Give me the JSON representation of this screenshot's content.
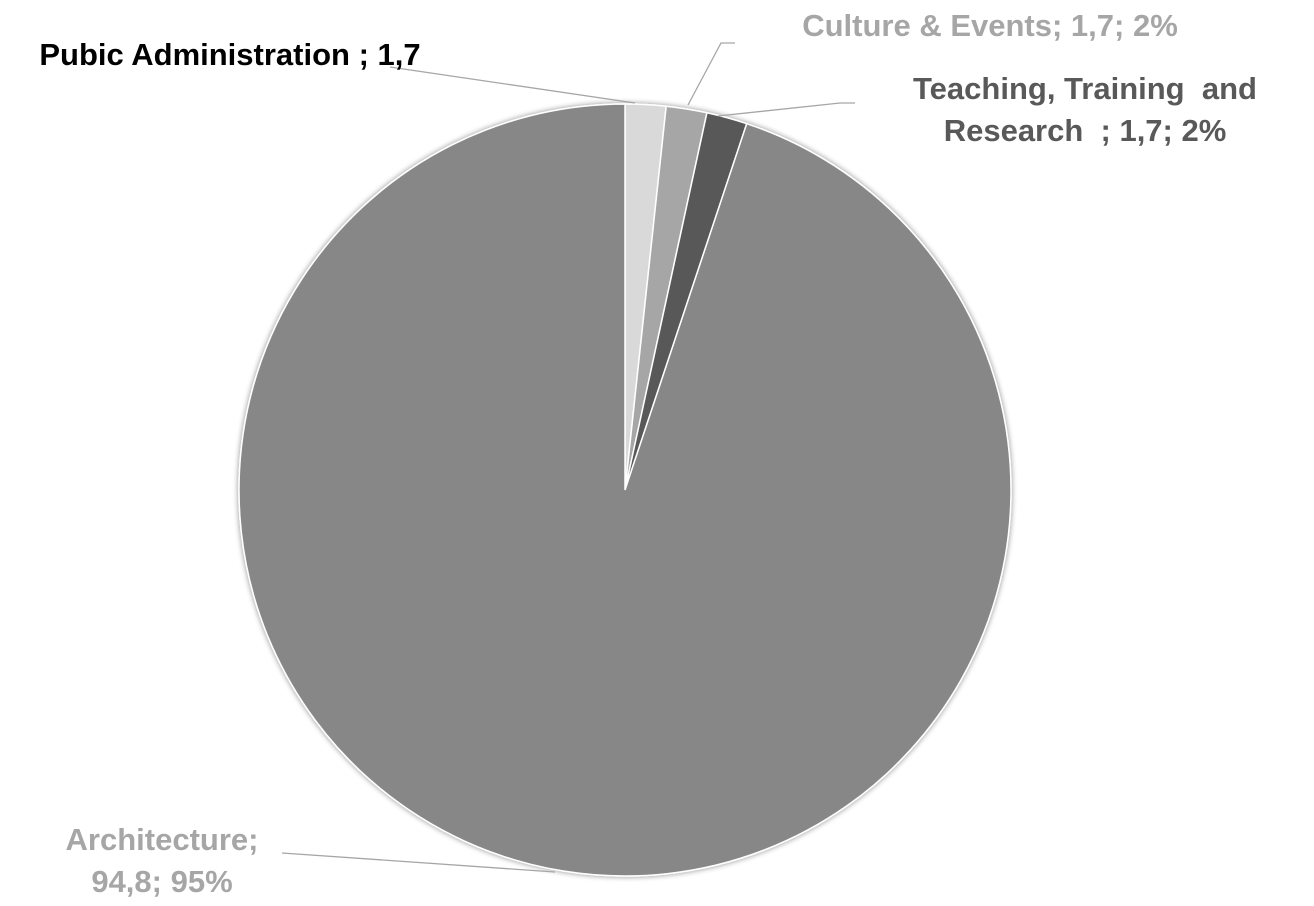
{
  "chart_data": {
    "type": "pie",
    "slices": [
      {
        "label": "Pubic Administration",
        "value": 1.7,
        "color": "#d9d9d9",
        "data_label": "Pubic Administration ; 1,7",
        "label_color": "#000000"
      },
      {
        "label": "Culture & Events",
        "value": 1.7,
        "color": "#a6a6a6",
        "data_label": "Culture & Events; 1,7; 2%",
        "label_color": "#a6a6a6"
      },
      {
        "label": "Teaching, Training  and Research",
        "value": 1.7,
        "color": "#595959",
        "data_label_lines": [
          "Teaching, Training  and",
          "Research  ; 1,7; 2%"
        ],
        "label_color": "#595959"
      },
      {
        "label": "Architecture",
        "value": 94.8,
        "color": "#878787",
        "data_label_lines": [
          "Architecture;",
          "94,8; 95%"
        ],
        "label_color": "#a6a6a6"
      }
    ],
    "start_angle_deg": 0,
    "direction": "clockwise",
    "legend": "none"
  }
}
